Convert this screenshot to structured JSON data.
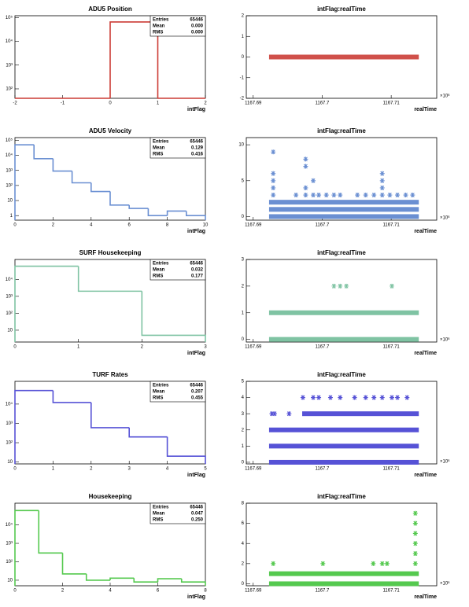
{
  "chart_data": [
    {
      "type": "histogram",
      "title": "ADU5 Position",
      "x_label": "intFlag",
      "color": "#cc3b35",
      "bins": [
        -2,
        -1,
        0,
        1,
        2
      ],
      "counts": [
        0,
        0,
        65446,
        0
      ],
      "xlim": [
        -2,
        2
      ],
      "xticks": [
        -2,
        -1,
        0,
        1,
        2
      ],
      "log_y": true,
      "ylim": [
        40,
        120000
      ],
      "yticks": [
        {
          "value": 100,
          "label": "10²"
        },
        {
          "value": 1000,
          "label": "10³"
        },
        {
          "value": 10000,
          "label": "10⁴"
        },
        {
          "value": 100000,
          "label": "10⁵"
        }
      ],
      "stats": [
        {
          "label": "Entries",
          "value": "65446"
        },
        {
          "label": "Mean",
          "value": "0.000"
        },
        {
          "label": "RMS",
          "value": "0.000"
        }
      ]
    },
    {
      "type": "scatter",
      "title": "intFlag:realTime",
      "x_label": "realTime",
      "x_multiplier": "×10⁶",
      "color": "#d0504a",
      "xlim": [
        1167.689,
        1167.7166
      ],
      "xticks": [
        1167.69,
        1167.7,
        1167.71
      ],
      "ylim": [
        -2,
        2
      ],
      "yticks": [
        -2,
        -1,
        0,
        1,
        2
      ],
      "bands": [
        {
          "y": 0,
          "x": [
            1167.6923,
            1167.714
          ]
        }
      ],
      "points": {
        "x": [],
        "y": []
      }
    },
    {
      "type": "histogram",
      "title": "ADU5 Velocity",
      "x_label": "intFlag",
      "color": "#6a8fd2",
      "bins": [
        0,
        1,
        2,
        3,
        4,
        5,
        6,
        7,
        8,
        9,
        10
      ],
      "counts": [
        50000,
        6000,
        900,
        150,
        40,
        5,
        3,
        1,
        2,
        1
      ],
      "xlim": [
        0,
        10
      ],
      "xticks": [
        0,
        2,
        4,
        6,
        8,
        10
      ],
      "log_y": true,
      "ylim": [
        0.5,
        150000
      ],
      "yticks": [
        1,
        10,
        {
          "value": 100,
          "label": "10²"
        },
        {
          "value": 1000,
          "label": "10³"
        },
        {
          "value": 10000,
          "label": "10⁴"
        },
        {
          "value": 100000,
          "label": "10⁵"
        }
      ],
      "stats": [
        {
          "label": "Entries",
          "value": "65446"
        },
        {
          "label": "Mean",
          "value": "0.129"
        },
        {
          "label": "RMS",
          "value": "0.416"
        }
      ]
    },
    {
      "type": "scatter",
      "title": "intFlag:realTime",
      "x_label": "realTime",
      "x_multiplier": "×10⁶",
      "color": "#6a8fd2",
      "xlim": [
        1167.689,
        1167.7166
      ],
      "xticks": [
        1167.69,
        1167.7,
        1167.71
      ],
      "ylim": [
        -0.5,
        11
      ],
      "yticks": [
        0,
        5,
        10
      ],
      "bands": [
        {
          "y": 0,
          "x": [
            1167.6923,
            1167.714
          ]
        },
        {
          "y": 1,
          "x": [
            1167.6923,
            1167.714
          ]
        },
        {
          "y": 2,
          "x": [
            1167.6923,
            1167.714
          ]
        }
      ],
      "points": {
        "x": [
          1167.6929,
          1167.6962,
          1167.6976,
          1167.6987,
          1167.6995,
          1167.7006,
          1167.7017,
          1167.7026,
          1167.7051,
          1167.7063,
          1167.7075,
          1167.7087,
          1167.7098,
          1167.7109,
          1167.7121,
          1167.7131,
          1167.6929,
          1167.6976,
          1167.7087,
          1167.6929,
          1167.6987,
          1167.7087,
          1167.6929,
          1167.7087,
          1167.6976,
          1167.6976,
          1167.6929
        ],
        "y": [
          3,
          3,
          3,
          3,
          3,
          3,
          3,
          3,
          3,
          3,
          3,
          3,
          3,
          3,
          3,
          3,
          4,
          4,
          4,
          5,
          5,
          5,
          6,
          6,
          7,
          8,
          9
        ]
      }
    },
    {
      "type": "histogram",
      "title": "SURF Housekeeping",
      "x_label": "intFlag",
      "color": "#7fc3a3",
      "bins": [
        0,
        1,
        2,
        3
      ],
      "counts": [
        60000,
        2000,
        5
      ],
      "xlim": [
        0,
        3
      ],
      "xticks": [
        0,
        1,
        2,
        3
      ],
      "log_y": true,
      "ylim": [
        2,
        150000
      ],
      "yticks": [
        10,
        {
          "value": 100,
          "label": "10²"
        },
        {
          "value": 1000,
          "label": "10³"
        },
        {
          "value": 10000,
          "label": "10⁴"
        }
      ],
      "stats": [
        {
          "label": "Entries",
          "value": "65446"
        },
        {
          "label": "Mean",
          "value": "0.032"
        },
        {
          "label": "RMS",
          "value": "0.177"
        }
      ]
    },
    {
      "type": "scatter",
      "title": "intFlag:realTime",
      "x_label": "realTime",
      "x_multiplier": "×10⁶",
      "color": "#7fc3a3",
      "xlim": [
        1167.689,
        1167.7166
      ],
      "xticks": [
        1167.69,
        1167.7,
        1167.71
      ],
      "ylim": [
        -0.1,
        3
      ],
      "yticks": [
        0,
        1,
        2,
        3
      ],
      "bands": [
        {
          "y": 0,
          "x": [
            1167.6923,
            1167.714
          ]
        },
        {
          "y": 1,
          "x": [
            1167.6923,
            1167.714
          ]
        }
      ],
      "points": {
        "x": [
          1167.7017,
          1167.7026,
          1167.7035,
          1167.7101
        ],
        "y": [
          2,
          2,
          2,
          2
        ]
      }
    },
    {
      "type": "histogram",
      "title": "TURF Rates",
      "x_label": "intFlag",
      "color": "#5652d6",
      "bins": [
        0,
        1,
        2,
        3,
        4,
        5
      ],
      "counts": [
        50000,
        12000,
        600,
        200,
        20
      ],
      "xlim": [
        0,
        5
      ],
      "xticks": [
        0,
        1,
        2,
        3,
        4,
        5
      ],
      "log_y": true,
      "ylim": [
        8,
        150000
      ],
      "yticks": [
        10,
        {
          "value": 100,
          "label": "10²"
        },
        {
          "value": 1000,
          "label": "10³"
        },
        {
          "value": 10000,
          "label": "10⁴"
        }
      ],
      "stats": [
        {
          "label": "Entries",
          "value": "65446"
        },
        {
          "label": "Mean",
          "value": "0.207"
        },
        {
          "label": "RMS",
          "value": "0.455"
        }
      ]
    },
    {
      "type": "scatter",
      "title": "intFlag:realTime",
      "x_label": "realTime",
      "x_multiplier": "×10⁶",
      "color": "#5652d6",
      "xlim": [
        1167.689,
        1167.7166
      ],
      "xticks": [
        1167.69,
        1167.7,
        1167.71
      ],
      "ylim": [
        -0.1,
        5
      ],
      "yticks": [
        0,
        1,
        2,
        3,
        4,
        5
      ],
      "bands": [
        {
          "y": 0,
          "x": [
            1167.6923,
            1167.714
          ]
        },
        {
          "y": 1,
          "x": [
            1167.6923,
            1167.714
          ]
        },
        {
          "y": 2,
          "x": [
            1167.6923,
            1167.714
          ]
        },
        {
          "y": 3,
          "x": [
            1167.6971,
            1167.714
          ]
        }
      ],
      "points": {
        "x": [
          1167.6927,
          1167.6931,
          1167.6952,
          1167.6972,
          1167.6987,
          1167.6995,
          1167.7012,
          1167.7026,
          1167.7047,
          1167.7063,
          1167.7075,
          1167.7087,
          1167.7101,
          1167.7109,
          1167.7123
        ],
        "y": [
          3,
          3,
          3,
          4,
          4,
          4,
          4,
          4,
          4,
          4,
          4,
          4,
          4,
          4,
          4
        ]
      }
    },
    {
      "type": "histogram",
      "title": "Housekeeping",
      "x_label": "intFlag",
      "color": "#55c94f",
      "bins": [
        0,
        1,
        2,
        3,
        4,
        5,
        6,
        7,
        8
      ],
      "counts": [
        60000,
        300,
        22,
        10,
        13,
        8,
        12,
        8
      ],
      "xlim": [
        0,
        8
      ],
      "xticks": [
        0,
        2,
        4,
        6,
        8
      ],
      "log_y": true,
      "ylim": [
        5,
        150000
      ],
      "yticks": [
        10,
        {
          "value": 100,
          "label": "10²"
        },
        {
          "value": 1000,
          "label": "10³"
        },
        {
          "value": 10000,
          "label": "10⁴"
        }
      ],
      "stats": [
        {
          "label": "Entries",
          "value": "65446"
        },
        {
          "label": "Mean",
          "value": "0.047"
        },
        {
          "label": "RMS",
          "value": "0.250"
        }
      ]
    },
    {
      "type": "scatter",
      "title": "intFlag:realTime",
      "x_label": "realTime",
      "x_multiplier": "×10⁶",
      "color": "#55c94f",
      "xlim": [
        1167.689,
        1167.7166
      ],
      "xticks": [
        1167.69,
        1167.7,
        1167.71
      ],
      "ylim": [
        -0.2,
        8
      ],
      "yticks": [
        0,
        2,
        4,
        6,
        8
      ],
      "bands": [
        {
          "y": 0,
          "x": [
            1167.6923,
            1167.714
          ]
        },
        {
          "y": 1,
          "x": [
            1167.6923,
            1167.714
          ]
        }
      ],
      "points": {
        "x": [
          1167.6929,
          1167.7001,
          1167.7074,
          1167.7087,
          1167.7094,
          1167.7135,
          1167.7135,
          1167.7135,
          1167.7135,
          1167.7135,
          1167.7135
        ],
        "y": [
          2,
          2,
          2,
          2,
          2,
          2,
          3,
          4,
          5,
          6,
          7
        ]
      }
    }
  ]
}
